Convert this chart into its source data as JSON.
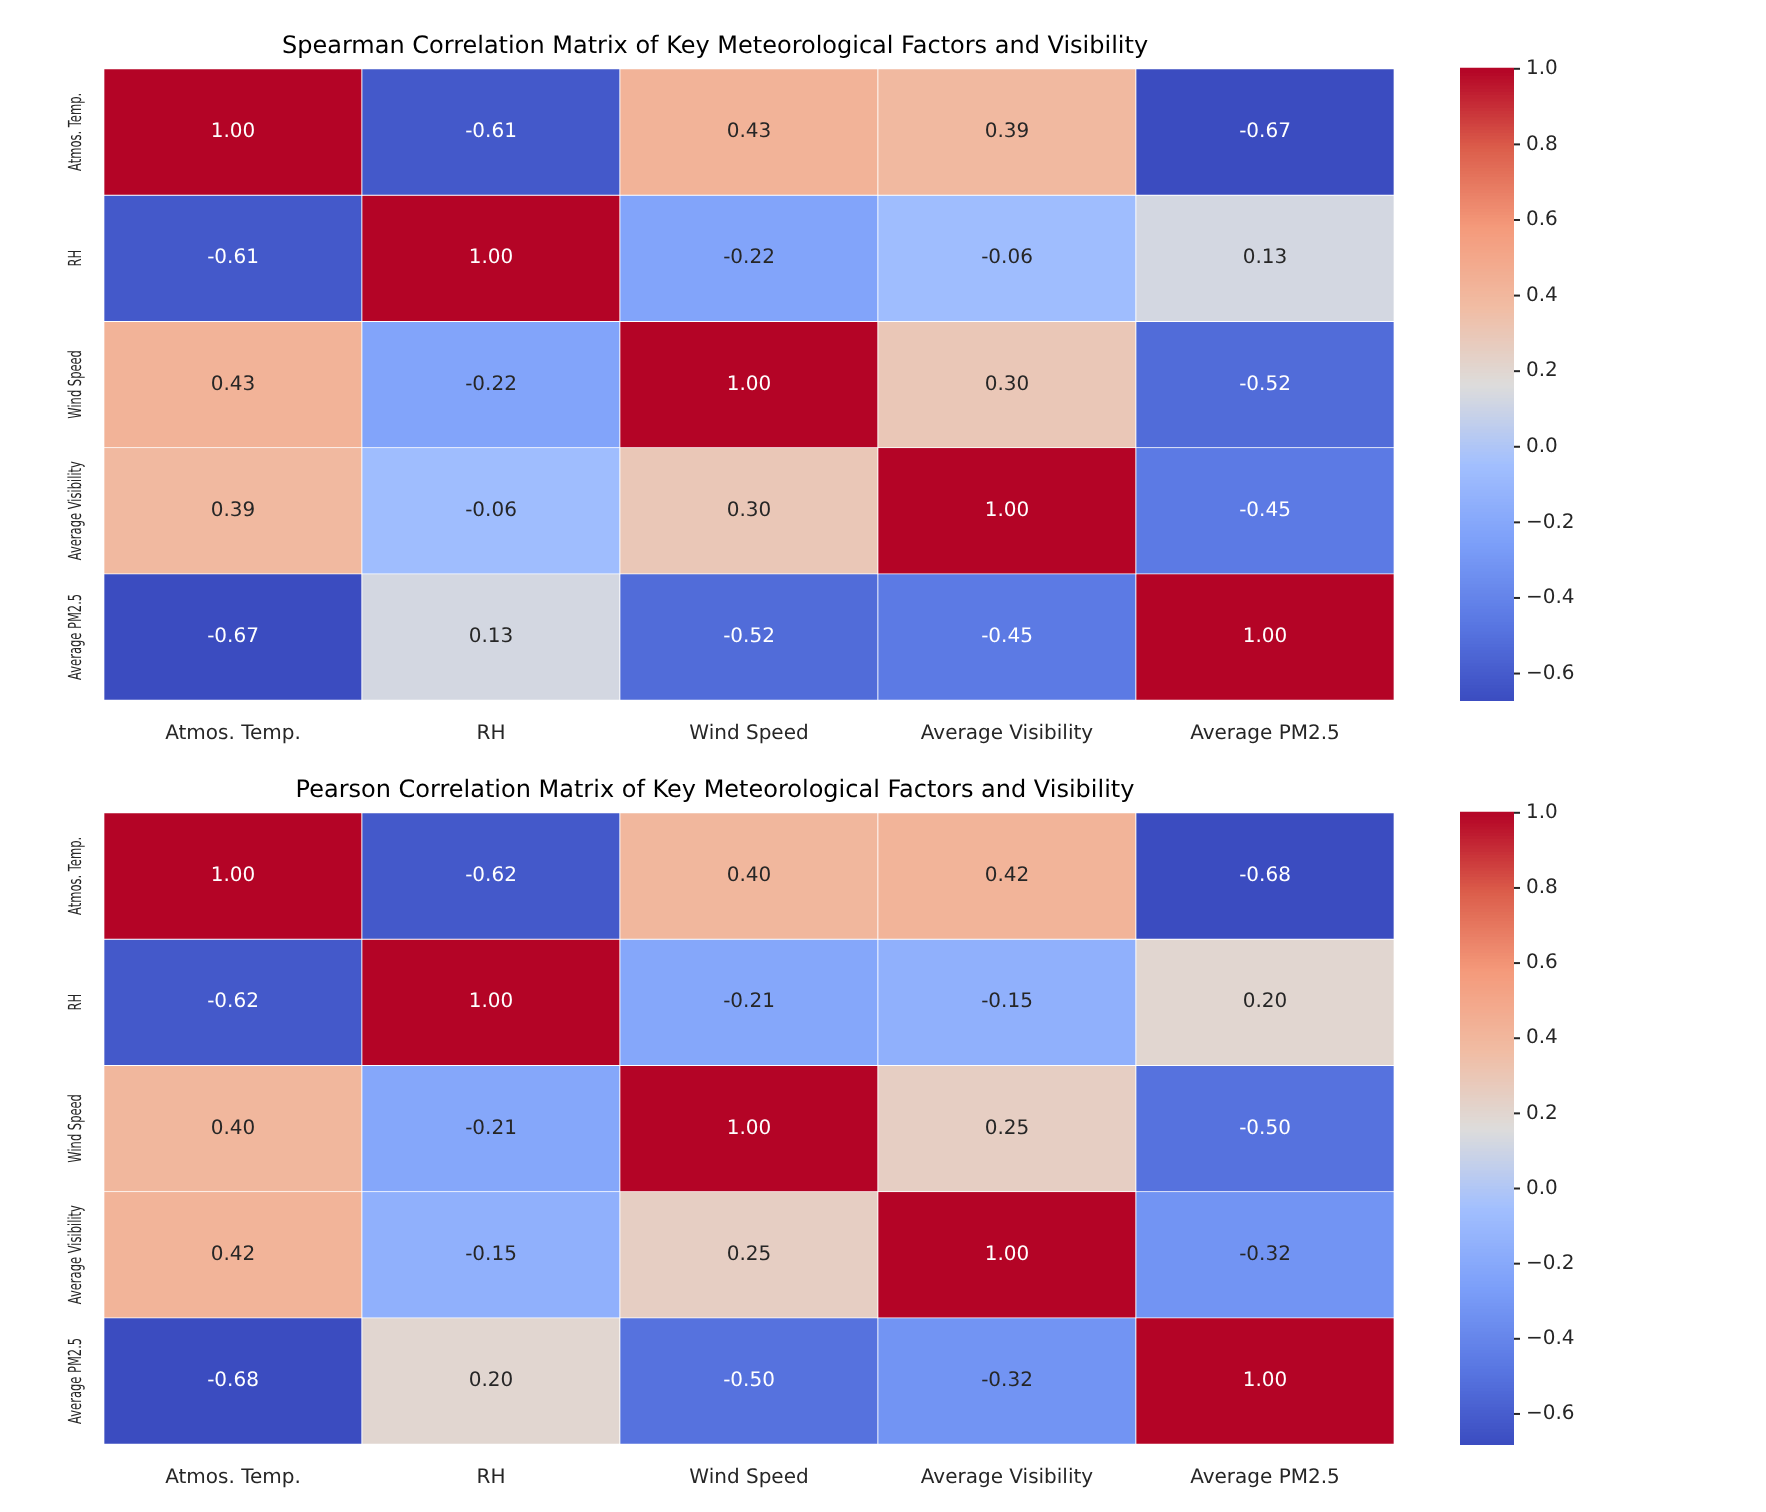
{
  "chart_data": [
    {
      "type": "heatmap",
      "title": "Spearman Correlation Matrix of Key Meteorological Factors and Visibility",
      "categories": [
        "Atmos. Temp.",
        "RH",
        "Wind Speed",
        "Average Visibility",
        "Average PM2.5"
      ],
      "y_categories": [
        "Atmos. Temp.",
        "RH",
        "Wind Speed",
        "Average Visibility",
        "Average PM2.5"
      ],
      "cells": [
        [
          1.0,
          -0.61,
          0.43,
          0.39,
          -0.67
        ],
        [
          -0.61,
          1.0,
          -0.22,
          -0.06,
          0.13
        ],
        [
          0.43,
          -0.22,
          1.0,
          0.3,
          -0.52
        ],
        [
          0.39,
          -0.06,
          0.3,
          1.0,
          -0.45
        ],
        [
          -0.67,
          0.13,
          -0.52,
          -0.45,
          1.0
        ]
      ],
      "cell_labels": [
        [
          "1.00",
          "-0.61",
          "0.43",
          "0.39",
          "-0.67"
        ],
        [
          "-0.61",
          "1.00",
          "-0.22",
          "-0.06",
          "0.13"
        ],
        [
          "0.43",
          "-0.22",
          "1.00",
          "0.30",
          "-0.52"
        ],
        [
          "0.39",
          "-0.06",
          "0.30",
          "1.00",
          "-0.45"
        ],
        [
          "-0.67",
          "0.13",
          "-0.52",
          "-0.45",
          "1.00"
        ]
      ],
      "clim": [
        -0.67,
        1
      ],
      "cticks": [
        {
          "value": -0.6,
          "label": "−0.6"
        },
        {
          "value": -0.4,
          "label": "−0.4"
        },
        {
          "value": -0.2,
          "label": "−0.2"
        },
        {
          "value": 0,
          "label": "0.0"
        },
        {
          "value": 0.2,
          "label": "0.2"
        },
        {
          "value": 0.4,
          "label": "0.4"
        },
        {
          "value": 0.6,
          "label": "0.6"
        },
        {
          "value": 0.8,
          "label": "0.8"
        },
        {
          "value": 1,
          "label": "1.0"
        }
      ],
      "data_labels": true
    },
    {
      "type": "heatmap",
      "title": "Pearson Correlation Matrix of Key Meteorological Factors and Visibility",
      "categories": [
        "Atmos. Temp.",
        "RH",
        "Wind Speed",
        "Average Visibility",
        "Average PM2.5"
      ],
      "y_categories": [
        "Atmos. Temp.",
        "RH",
        "Wind Speed",
        "Average Visibility",
        "Average PM2.5"
      ],
      "cells": [
        [
          1.0,
          -0.62,
          0.4,
          0.42,
          -0.68
        ],
        [
          -0.62,
          1.0,
          -0.21,
          -0.15,
          0.2
        ],
        [
          0.4,
          -0.21,
          1.0,
          0.25,
          -0.5
        ],
        [
          0.42,
          -0.15,
          0.25,
          1.0,
          -0.32
        ],
        [
          -0.68,
          0.2,
          -0.5,
          -0.32,
          1.0
        ]
      ],
      "cell_labels": [
        [
          "1.00",
          "-0.62",
          "0.40",
          "0.42",
          "-0.68"
        ],
        [
          "-0.62",
          "1.00",
          "-0.21",
          "-0.15",
          "0.20"
        ],
        [
          "0.40",
          "-0.21",
          "1.00",
          "0.25",
          "-0.50"
        ],
        [
          "0.42",
          "-0.15",
          "0.25",
          "1.00",
          "-0.32"
        ],
        [
          "-0.68",
          "0.20",
          "-0.50",
          "-0.32",
          "1.00"
        ]
      ],
      "clim": [
        -0.68,
        1
      ],
      "cticks": [
        {
          "value": -0.6,
          "label": "−0.6"
        },
        {
          "value": -0.4,
          "label": "−0.4"
        },
        {
          "value": -0.2,
          "label": "−0.2"
        },
        {
          "value": 0,
          "label": "0.0"
        },
        {
          "value": 0.2,
          "label": "0.2"
        },
        {
          "value": 0.4,
          "label": "0.4"
        },
        {
          "value": 0.6,
          "label": "0.6"
        },
        {
          "value": 0.8,
          "label": "0.8"
        },
        {
          "value": 1,
          "label": "1.0"
        }
      ],
      "data_labels": true
    }
  ]
}
